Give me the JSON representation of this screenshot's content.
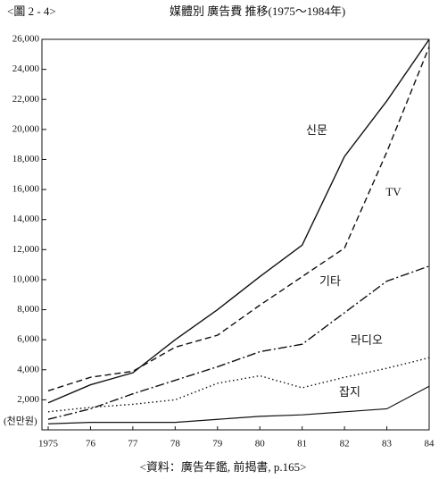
{
  "chart_data": {
    "type": "line",
    "figure_label": "<圖 2 - 4>",
    "title": "媒體別 廣告費 推移(1975～1984年)",
    "source": "<資料：廣告年鑑, 前揭書, p.165>",
    "y_unit": "(천만원)",
    "categories": [
      "1975",
      "76",
      "77",
      "78",
      "79",
      "80",
      "81",
      "82",
      "83",
      "84"
    ],
    "ylim": [
      0,
      26000
    ],
    "yticks": [
      {
        "value": 2000,
        "label": "2,000"
      },
      {
        "value": 4000,
        "label": "4,000"
      },
      {
        "value": 6000,
        "label": "6,000"
      },
      {
        "value": 8000,
        "label": "8,000"
      },
      {
        "value": 10000,
        "label": "10,000"
      },
      {
        "value": 12000,
        "label": "12,000"
      },
      {
        "value": 14000,
        "label": "14,000"
      },
      {
        "value": 16000,
        "label": "16,000"
      },
      {
        "value": 18000,
        "label": "18,000"
      },
      {
        "value": 20000,
        "label": "20,000"
      },
      {
        "value": 22000,
        "label": "22,000"
      },
      {
        "value": 24000,
        "label": "24,000"
      },
      {
        "value": 26000,
        "label": "26,000"
      }
    ],
    "series": [
      {
        "name": "신문",
        "color": "#111111",
        "dash": "solid",
        "values": [
          1800,
          3000,
          3800,
          6000,
          8000,
          10200,
          12300,
          18200,
          21900,
          26000
        ]
      },
      {
        "name": "TV",
        "color": "#111111",
        "dash": "dashed",
        "values": [
          2600,
          3500,
          3900,
          5500,
          6300,
          8300,
          10200,
          12100,
          18500,
          25500
        ]
      },
      {
        "name": "기타",
        "color": "#111111",
        "dash": "dashdot",
        "values": [
          700,
          1400,
          2400,
          3300,
          4200,
          5200,
          5700,
          7800,
          9900,
          10900
        ]
      },
      {
        "name": "라디오",
        "color": "#111111",
        "dash": "dotted",
        "values": [
          1200,
          1500,
          1700,
          2000,
          3100,
          3600,
          2800,
          3500,
          4100,
          4800
        ]
      },
      {
        "name": "잡지",
        "color": "#111111",
        "dash": "solid",
        "values": [
          400,
          500,
          500,
          500,
          700,
          900,
          1000,
          1200,
          1400,
          2900
        ]
      }
    ]
  }
}
